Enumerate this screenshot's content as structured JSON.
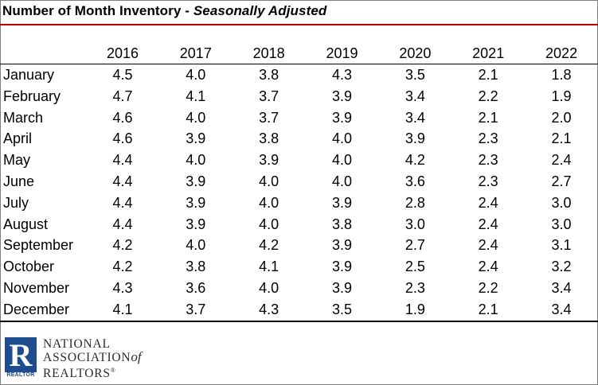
{
  "title": {
    "main": "Number of Month Inventory - ",
    "subtitle": "Seasonally Adjusted"
  },
  "colors": {
    "title_rule": "#c00000",
    "logo_blue": "#1e4c8f"
  },
  "table": {
    "years": [
      "2016",
      "2017",
      "2018",
      "2019",
      "2020",
      "2021",
      "2022"
    ],
    "rows": [
      {
        "month": "January",
        "values": [
          "4.5",
          "4.0",
          "3.8",
          "4.3",
          "3.5",
          "2.1",
          "1.8"
        ]
      },
      {
        "month": "February",
        "values": [
          "4.7",
          "4.1",
          "3.7",
          "3.9",
          "3.4",
          "2.2",
          "1.9"
        ]
      },
      {
        "month": "March",
        "values": [
          "4.6",
          "4.0",
          "3.7",
          "3.9",
          "3.4",
          "2.1",
          "2.0"
        ]
      },
      {
        "month": "April",
        "values": [
          "4.6",
          "3.9",
          "3.8",
          "4.0",
          "3.9",
          "2.3",
          "2.1"
        ]
      },
      {
        "month": "May",
        "values": [
          "4.4",
          "4.0",
          "3.9",
          "4.0",
          "4.2",
          "2.3",
          "2.4"
        ]
      },
      {
        "month": "June",
        "values": [
          "4.4",
          "3.9",
          "4.0",
          "4.0",
          "3.6",
          "2.3",
          "2.7"
        ]
      },
      {
        "month": "July",
        "values": [
          "4.4",
          "3.9",
          "4.0",
          "3.9",
          "2.8",
          "2.4",
          "3.0"
        ]
      },
      {
        "month": "August",
        "values": [
          "4.4",
          "3.9",
          "4.0",
          "3.8",
          "3.0",
          "2.4",
          "3.0"
        ]
      },
      {
        "month": "September",
        "values": [
          "4.2",
          "4.0",
          "4.2",
          "3.9",
          "2.7",
          "2.4",
          "3.1"
        ]
      },
      {
        "month": "October",
        "values": [
          "4.2",
          "3.8",
          "4.1",
          "3.9",
          "2.5",
          "2.4",
          "3.2"
        ]
      },
      {
        "month": "November",
        "values": [
          "4.3",
          "3.6",
          "4.0",
          "3.9",
          "2.3",
          "2.2",
          "3.4"
        ]
      },
      {
        "month": "December",
        "values": [
          "4.1",
          "3.7",
          "4.3",
          "3.5",
          "1.9",
          "2.1",
          "3.4"
        ]
      }
    ]
  },
  "logo": {
    "mark_letter": "R",
    "mark_caption": "REALTOR",
    "line1": "NATIONAL",
    "line2": "ASSOCIATION",
    "line2_of": "of",
    "line3": "REALTORS",
    "line3_mark": "®"
  }
}
